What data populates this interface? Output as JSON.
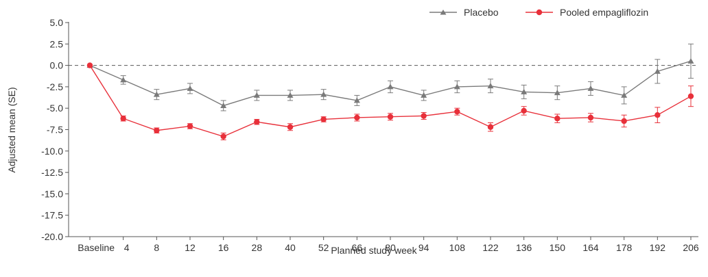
{
  "chart_data": {
    "type": "line",
    "xlabel": "Planned study week",
    "ylabel": "Adjusted mean (SE)",
    "categories": [
      "Baseline",
      "4",
      "8",
      "12",
      "16",
      "28",
      "40",
      "52",
      "66",
      "80",
      "94",
      "108",
      "122",
      "136",
      "150",
      "164",
      "178",
      "192",
      "206"
    ],
    "yticks": [
      "5.0",
      "2.5",
      "0.0",
      "-2.5",
      "-5.0",
      "-7.5",
      "-10.0",
      "-12.5",
      "-15.0",
      "-17.5",
      "-20.0"
    ],
    "ylim": [
      -20,
      5
    ],
    "reference_line": 0,
    "legend_position": "top-right",
    "series": [
      {
        "name": "Placebo",
        "color": "#7a7a7a",
        "marker": "triangle",
        "values": [
          0,
          -1.7,
          -3.4,
          -2.7,
          -4.7,
          -3.5,
          -3.5,
          -3.4,
          -4.1,
          -2.5,
          -3.5,
          -2.5,
          -2.4,
          -3.1,
          -3.2,
          -2.7,
          -3.5,
          -0.7,
          0.5
        ],
        "errors": [
          0,
          0.5,
          0.6,
          0.6,
          0.6,
          0.6,
          0.6,
          0.6,
          0.6,
          0.7,
          0.6,
          0.7,
          0.8,
          0.8,
          0.8,
          0.8,
          1.0,
          1.4,
          2.0
        ]
      },
      {
        "name": "Pooled empagliflozin",
        "color": "#e8303a",
        "marker": "circle",
        "values": [
          0,
          -6.2,
          -7.6,
          -7.1,
          -8.3,
          -6.6,
          -7.2,
          -6.3,
          -6.1,
          -6.0,
          -5.9,
          -5.4,
          -7.2,
          -5.3,
          -6.2,
          -6.1,
          -6.5,
          -5.8,
          -3.6
        ],
        "errors": [
          0,
          0.3,
          0.3,
          0.3,
          0.4,
          0.3,
          0.4,
          0.3,
          0.4,
          0.4,
          0.4,
          0.4,
          0.5,
          0.5,
          0.5,
          0.5,
          0.7,
          0.9,
          1.2
        ]
      }
    ]
  }
}
